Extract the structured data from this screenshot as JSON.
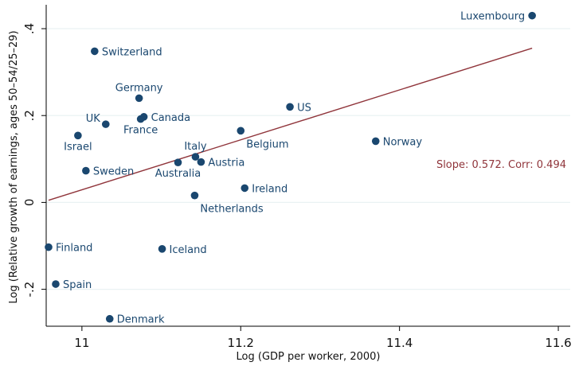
{
  "chart_data": {
    "type": "scatter",
    "xlabel": "Log (GDP per worker, 2000)",
    "ylabel": "Log (Relative growth of earnings, ages 50–54/25–29)",
    "xlim": [
      10.955,
      11.615
    ],
    "ylim": [
      -0.285,
      0.455
    ],
    "x_ticks": [
      11,
      11.2,
      11.4,
      11.6
    ],
    "x_tick_labels": [
      "11",
      "11.2",
      "11.4",
      "11.6"
    ],
    "y_ticks": [
      -0.2,
      0,
      0.2,
      0.4
    ],
    "y_tick_labels": [
      "-.2",
      "0",
      ".2",
      ".4"
    ],
    "grid": true,
    "marker_color": "#1a476f",
    "fit_color": "#90353b",
    "points": [
      {
        "name": "Luxembourg",
        "x": 11.567,
        "y": 0.43,
        "label_pos": "left"
      },
      {
        "name": "Switzerland",
        "x": 11.016,
        "y": 0.348,
        "label_pos": "right"
      },
      {
        "name": "Germany",
        "x": 11.072,
        "y": 0.24,
        "label_pos": "top"
      },
      {
        "name": "US",
        "x": 11.262,
        "y": 0.22,
        "label_pos": "right"
      },
      {
        "name": "Canada",
        "x": 11.078,
        "y": 0.197,
        "label_pos": "right"
      },
      {
        "name": "France",
        "x": 11.074,
        "y": 0.192,
        "label_pos": "below"
      },
      {
        "name": "UK",
        "x": 11.03,
        "y": 0.18,
        "label_pos": "upper-left"
      },
      {
        "name": "Belgium",
        "x": 11.2,
        "y": 0.165,
        "label_pos": "below-right"
      },
      {
        "name": "Israel",
        "x": 10.995,
        "y": 0.154,
        "label_pos": "below"
      },
      {
        "name": "Norway",
        "x": 11.37,
        "y": 0.141,
        "label_pos": "right"
      },
      {
        "name": "Italy",
        "x": 11.143,
        "y": 0.105,
        "label_pos": "top"
      },
      {
        "name": "Austria",
        "x": 11.15,
        "y": 0.093,
        "label_pos": "right"
      },
      {
        "name": "Australia",
        "x": 11.121,
        "y": 0.092,
        "label_pos": "below"
      },
      {
        "name": "Sweden",
        "x": 11.005,
        "y": 0.073,
        "label_pos": "right"
      },
      {
        "name": "Ireland",
        "x": 11.205,
        "y": 0.033,
        "label_pos": "right"
      },
      {
        "name": "Netherlands",
        "x": 11.142,
        "y": 0.016,
        "label_pos": "below-right"
      },
      {
        "name": "Finland",
        "x": 10.958,
        "y": -0.103,
        "label_pos": "right"
      },
      {
        "name": "Iceland",
        "x": 11.101,
        "y": -0.107,
        "label_pos": "right"
      },
      {
        "name": "Spain",
        "x": 10.967,
        "y": -0.188,
        "label_pos": "right"
      },
      {
        "name": "Denmark",
        "x": 11.035,
        "y": -0.268,
        "label_pos": "right"
      }
    ],
    "fit_line": {
      "x": [
        10.958,
        11.567
      ],
      "y": [
        0.005,
        0.355
      ]
    },
    "annotation": "Slope: 0.572.  Corr: 0.494"
  }
}
